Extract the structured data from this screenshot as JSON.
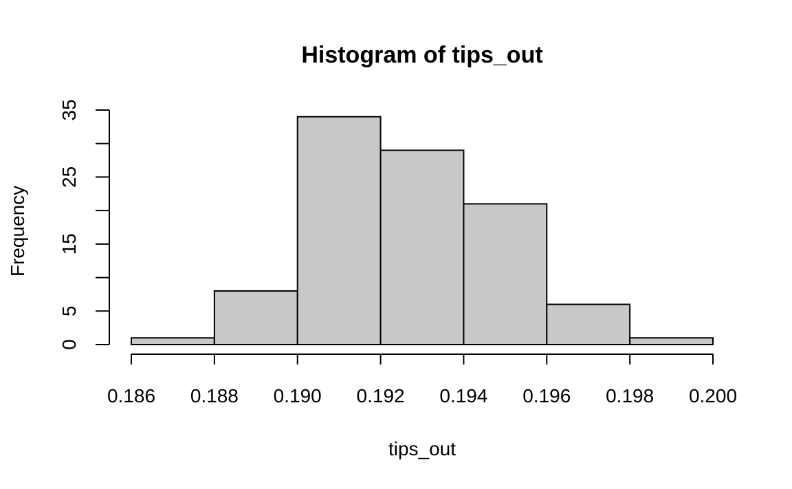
{
  "chart_data": {
    "type": "bar",
    "title": "Histogram of tips_out",
    "xlabel": "tips_out",
    "ylabel": "Frequency",
    "bins": [
      {
        "start": 0.186,
        "end": 0.188,
        "count": 1
      },
      {
        "start": 0.188,
        "end": 0.19,
        "count": 8
      },
      {
        "start": 0.19,
        "end": 0.192,
        "count": 34
      },
      {
        "start": 0.192,
        "end": 0.194,
        "count": 29
      },
      {
        "start": 0.194,
        "end": 0.196,
        "count": 21
      },
      {
        "start": 0.196,
        "end": 0.198,
        "count": 6
      },
      {
        "start": 0.198,
        "end": 0.2,
        "count": 1
      }
    ],
    "xlim": [
      0.186,
      0.2
    ],
    "ylim": [
      0,
      35
    ],
    "x_ticks": [
      "0.186",
      "0.188",
      "0.190",
      "0.192",
      "0.194",
      "0.196",
      "0.198",
      "0.200"
    ],
    "y_ticks": [
      0,
      5,
      10,
      15,
      20,
      25,
      30,
      35
    ],
    "y_tick_labels": [
      "0",
      "5",
      "",
      "15",
      "",
      "25",
      "",
      "35"
    ],
    "bar_fill": "#c8c8c8",
    "bar_stroke": "#000000",
    "grid": false,
    "legend": "none"
  }
}
